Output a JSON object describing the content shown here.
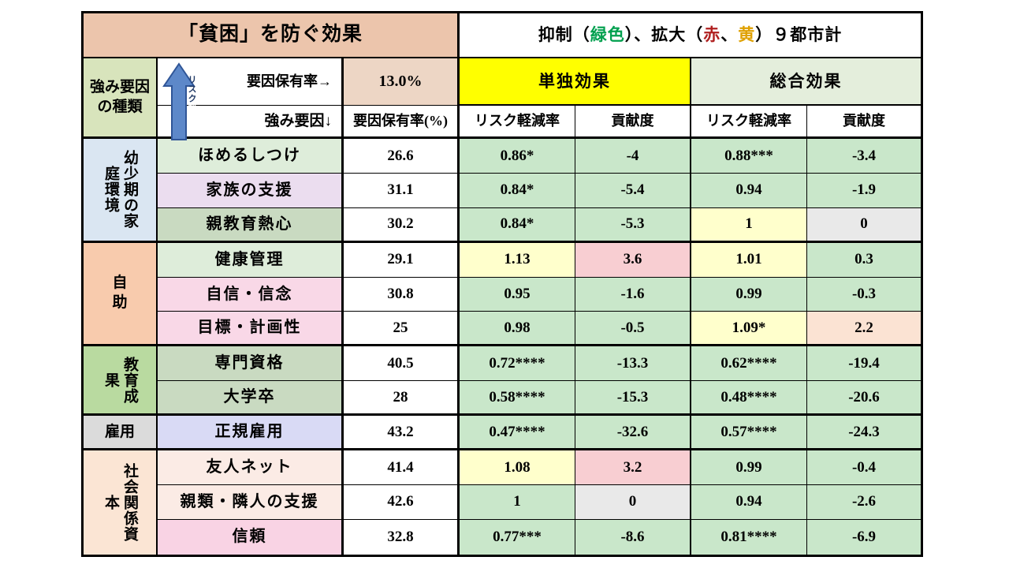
{
  "header": {
    "title": "「貧困」を防ぐ効果",
    "legend_parts": {
      "prefix": "抑制（",
      "green_word": "緑色",
      "mid": "）、拡大（",
      "red_word": "赤",
      "comma": "、",
      "yellow_word": "黄",
      "suffix": "）９都市計"
    },
    "category_label": "強み要因\nの種類",
    "arrow_label_top": "リスク",
    "arrow_label_bottom": "軽減",
    "factor_rate_arrow": "要因保有率→",
    "factor_rate_value": "13.0%",
    "single_effect": "単独効果",
    "overall_effect": "総合効果",
    "strength_factor": "強み要因↓",
    "factor_rate_pct": "要因保有率(%)",
    "risk_reduction_1": "リスク軽減率",
    "contribution_1": "貢献度",
    "risk_reduction_2": "リスク軽減率",
    "contribution_2": "貢献度"
  },
  "colors": {
    "header_tan": "#ECC5AC",
    "rate_tan": "#EDD6C5",
    "category_green": "#D8E4BC",
    "single_yellow": "#FFFF00",
    "overall_sage": "#E4EEDC",
    "white": "#FFFFFF",
    "suppress_green": "#C9E7CA",
    "expand_red": "#F8CED2",
    "expand_yellow": "#FFFFCC",
    "expand_peach": "#FBE3D3",
    "neutral_gray": "#E9E9E9",
    "arrow_blue": "#5D88C9",
    "arrow_border": "#2F5597",
    "label_green_light": "#DEEDDA",
    "label_lavender": "#EBDDEF",
    "label_sage": "#C9DAC1",
    "label_pink": "#F9D8E7",
    "label_periwinkle": "#D9DAF5",
    "label_pale_pink": "#FBEBE5",
    "label_pink2": "#F9D3E4"
  },
  "groups": [
    {
      "label": "幼少期の家庭環境",
      "rows": 3,
      "bg": "#DAE6F2"
    },
    {
      "label": "自\n助",
      "rows": 3,
      "bg": "#F8CBAD"
    },
    {
      "label": "教育成果",
      "rows": 2,
      "bg": "#B9DAA0"
    },
    {
      "label": "雇用",
      "rows": 1,
      "bg": "#DBDBDB"
    },
    {
      "label": "社会関係資本",
      "rows": 3,
      "bg": "#FBE5D4"
    }
  ],
  "chart_data": {
    "type": "table",
    "title": "「貧困」を防ぐ効果",
    "subtitle": "抑制（緑色）、拡大（赤、黄）９都市計",
    "overall_factor_rate": "13.0%",
    "columns": [
      "強み要因",
      "要因保有率(%)",
      "単独効果 リスク軽減率",
      "単独効果 貢献度",
      "総合効果 リスク軽減率",
      "総合効果 貢献度"
    ],
    "rows": [
      {
        "group": "幼少期の家庭環境",
        "label": "ほめるしつけ",
        "label_bg": "label_green_light",
        "cells": [
          {
            "t": "26.6",
            "bg": "white"
          },
          {
            "t": "0.86*",
            "bg": "suppress_green"
          },
          {
            "t": "-4",
            "bg": "suppress_green"
          },
          {
            "t": "0.88***",
            "bg": "suppress_green"
          },
          {
            "t": "-3.4",
            "bg": "suppress_green"
          }
        ]
      },
      {
        "group": "幼少期の家庭環境",
        "label": "家族の支援",
        "label_bg": "label_lavender",
        "cells": [
          {
            "t": "31.1",
            "bg": "white"
          },
          {
            "t": "0.84*",
            "bg": "suppress_green"
          },
          {
            "t": "-5.4",
            "bg": "suppress_green"
          },
          {
            "t": "0.94",
            "bg": "suppress_green"
          },
          {
            "t": "-1.9",
            "bg": "suppress_green"
          }
        ]
      },
      {
        "group": "幼少期の家庭環境",
        "label": "親教育熱心",
        "label_bg": "label_sage",
        "cells": [
          {
            "t": "30.2",
            "bg": "white"
          },
          {
            "t": "0.84*",
            "bg": "suppress_green"
          },
          {
            "t": "-5.3",
            "bg": "suppress_green"
          },
          {
            "t": "1",
            "bg": "expand_yellow"
          },
          {
            "t": "0",
            "bg": "neutral_gray"
          }
        ]
      },
      {
        "group": "自助",
        "label": "健康管理",
        "label_bg": "label_green_light",
        "cells": [
          {
            "t": "29.1",
            "bg": "white"
          },
          {
            "t": "1.13",
            "bg": "expand_yellow"
          },
          {
            "t": "3.6",
            "bg": "expand_red"
          },
          {
            "t": "1.01",
            "bg": "expand_yellow"
          },
          {
            "t": "0.3",
            "bg": "suppress_green"
          }
        ]
      },
      {
        "group": "自助",
        "label": "自信・信念",
        "label_bg": "label_pink",
        "cells": [
          {
            "t": "30.8",
            "bg": "white"
          },
          {
            "t": "0.95",
            "bg": "suppress_green"
          },
          {
            "t": "-1.6",
            "bg": "suppress_green"
          },
          {
            "t": "0.99",
            "bg": "suppress_green"
          },
          {
            "t": "-0.3",
            "bg": "suppress_green"
          }
        ]
      },
      {
        "group": "自助",
        "label": "目標・計画性",
        "label_bg": "label_pink",
        "cells": [
          {
            "t": "25",
            "bg": "white"
          },
          {
            "t": "0.98",
            "bg": "suppress_green"
          },
          {
            "t": "-0.5",
            "bg": "suppress_green"
          },
          {
            "t": "1.09*",
            "bg": "expand_yellow"
          },
          {
            "t": "2.2",
            "bg": "expand_peach"
          }
        ]
      },
      {
        "group": "教育成果",
        "label": "専門資格",
        "label_bg": "label_sage",
        "cells": [
          {
            "t": "40.5",
            "bg": "white"
          },
          {
            "t": "0.72****",
            "bg": "suppress_green"
          },
          {
            "t": "-13.3",
            "bg": "suppress_green"
          },
          {
            "t": "0.62****",
            "bg": "suppress_green"
          },
          {
            "t": "-19.4",
            "bg": "suppress_green"
          }
        ]
      },
      {
        "group": "教育成果",
        "label": "大学卒",
        "label_bg": "label_sage",
        "cells": [
          {
            "t": "28",
            "bg": "white"
          },
          {
            "t": "0.58****",
            "bg": "suppress_green"
          },
          {
            "t": "-15.3",
            "bg": "suppress_green"
          },
          {
            "t": "0.48****",
            "bg": "suppress_green"
          },
          {
            "t": "-20.6",
            "bg": "suppress_green"
          }
        ]
      },
      {
        "group": "雇用",
        "label": "正規雇用",
        "label_bg": "label_periwinkle",
        "cells": [
          {
            "t": "43.2",
            "bg": "white"
          },
          {
            "t": "0.47****",
            "bg": "suppress_green"
          },
          {
            "t": "-32.6",
            "bg": "suppress_green"
          },
          {
            "t": "0.57****",
            "bg": "suppress_green"
          },
          {
            "t": "-24.3",
            "bg": "suppress_green"
          }
        ]
      },
      {
        "group": "社会関係資本",
        "label": "友人ネット",
        "label_bg": "label_pale_pink",
        "cells": [
          {
            "t": "41.4",
            "bg": "white"
          },
          {
            "t": "1.08",
            "bg": "expand_yellow"
          },
          {
            "t": "3.2",
            "bg": "expand_red"
          },
          {
            "t": "0.99",
            "bg": "suppress_green"
          },
          {
            "t": "-0.4",
            "bg": "suppress_green"
          }
        ]
      },
      {
        "group": "社会関係資本",
        "label": "親類・隣人の支援",
        "label_bg": "label_pale_pink",
        "cells": [
          {
            "t": "42.6",
            "bg": "white"
          },
          {
            "t": "1",
            "bg": "suppress_green"
          },
          {
            "t": "0",
            "bg": "neutral_gray"
          },
          {
            "t": "0.94",
            "bg": "suppress_green"
          },
          {
            "t": "-2.6",
            "bg": "suppress_green"
          }
        ]
      },
      {
        "group": "社会関係資本",
        "label": "信頼",
        "label_bg": "label_pink2",
        "cells": [
          {
            "t": "32.8",
            "bg": "white"
          },
          {
            "t": "0.77***",
            "bg": "suppress_green"
          },
          {
            "t": "-8.6",
            "bg": "suppress_green"
          },
          {
            "t": "0.81****",
            "bg": "suppress_green"
          },
          {
            "t": "-6.9",
            "bg": "suppress_green"
          }
        ]
      }
    ]
  }
}
